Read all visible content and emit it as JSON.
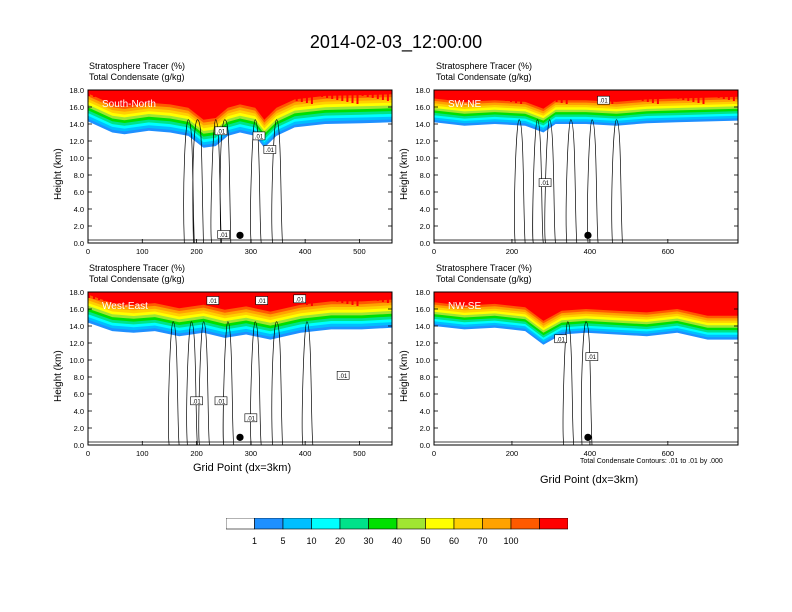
{
  "title": "2014-02-03_12:00:00",
  "header": {
    "line1": "Stratosphere Tracer   (%)",
    "line2": "Total Condensate   (g/kg)"
  },
  "ylabel": "Height (km)",
  "xlabel": "Grid Point (dx=3km)",
  "footnote": "Total Condensate Contours: .01 to .01 by .000",
  "yticks": [
    "0.0",
    "2.0",
    "4.0",
    "6.0",
    "8.0",
    "10.0",
    "12.0",
    "14.0",
    "16.0",
    "18.0"
  ],
  "chart_data": [
    {
      "type": "heatmap",
      "panel": "South-North",
      "xlim": [
        0,
        560
      ],
      "ylim": [
        0,
        18
      ],
      "xticks": [
        0,
        100,
        200,
        300,
        400,
        500
      ],
      "marker_x": 280,
      "contour_labels": [
        {
          "x": 245,
          "y": 13.2,
          "t": ".01"
        },
        {
          "x": 315,
          "y": 12.6,
          "t": ".01"
        },
        {
          "x": 335,
          "y": 11.0,
          "t": ".01"
        },
        {
          "x": 250,
          "y": 1.0,
          "t": ".01"
        }
      ]
    },
    {
      "type": "heatmap",
      "panel": "SW-NE",
      "xlim": [
        0,
        780
      ],
      "ylim": [
        0,
        18
      ],
      "xticks": [
        0,
        200,
        400,
        600
      ],
      "marker_x": 395,
      "contour_labels": [
        {
          "x": 285,
          "y": 7.1,
          "t": ".01"
        },
        {
          "x": 435,
          "y": 16.8,
          "t": ".01"
        }
      ]
    },
    {
      "type": "heatmap",
      "panel": "West-East",
      "xlim": [
        0,
        560
      ],
      "ylim": [
        0,
        18
      ],
      "xticks": [
        0,
        100,
        200,
        300,
        400,
        500
      ],
      "marker_x": 280,
      "contour_labels": [
        {
          "x": 230,
          "y": 17.0,
          "t": ".01"
        },
        {
          "x": 320,
          "y": 17.0,
          "t": ".01"
        },
        {
          "x": 390,
          "y": 17.2,
          "t": ".01"
        },
        {
          "x": 470,
          "y": 8.2,
          "t": ".01"
        },
        {
          "x": 200,
          "y": 5.2,
          "t": ".01"
        },
        {
          "x": 245,
          "y": 5.2,
          "t": ".01"
        },
        {
          "x": 300,
          "y": 3.2,
          "t": ".01"
        }
      ]
    },
    {
      "type": "heatmap",
      "panel": "NW-SE",
      "xlim": [
        0,
        780
      ],
      "ylim": [
        0,
        18
      ],
      "xticks": [
        0,
        200,
        400,
        600
      ],
      "marker_x": 395,
      "contour_labels": [
        {
          "x": 325,
          "y": 12.5,
          "t": ".01"
        },
        {
          "x": 405,
          "y": 10.4,
          "t": ".01"
        }
      ]
    }
  ],
  "colorbar": {
    "colors": [
      "#ffffff",
      "#1e90ff",
      "#00bfff",
      "#00ffff",
      "#00e28a",
      "#00e000",
      "#a0e632",
      "#ffff00",
      "#ffd000",
      "#ffa200",
      "#ff5a00",
      "#ff0000"
    ],
    "labels": [
      "1",
      "5",
      "10",
      "20",
      "30",
      "40",
      "50",
      "60",
      "70",
      "100"
    ]
  }
}
